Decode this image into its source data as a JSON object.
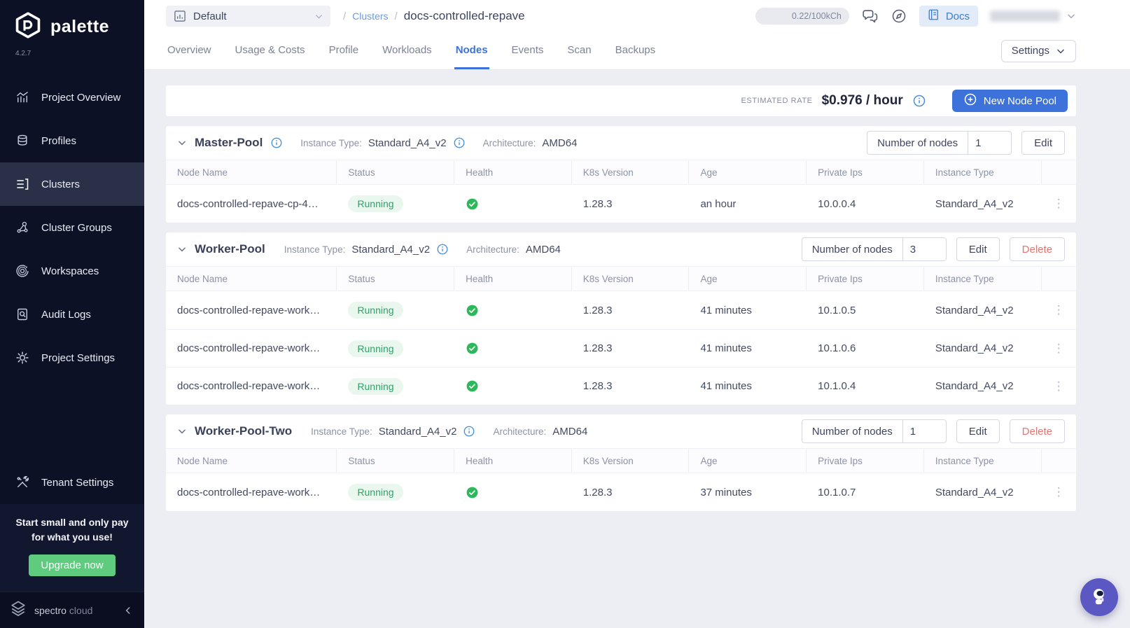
{
  "colors": {
    "accent_blue": "#3c72d9",
    "success_green": "#33a069",
    "delete_red": "#df7672",
    "upgrade_green": "#5ecb7e",
    "fab_purple": "#5b58c4",
    "sidebar_bg": "#0d1126"
  },
  "sidebar": {
    "logo_text": "palette",
    "version": "4.2.7",
    "items": [
      {
        "label": "Project Overview",
        "icon": "chart-icon",
        "active": false,
        "position": "top"
      },
      {
        "label": "Profiles",
        "icon": "layers-icon",
        "active": false,
        "position": "top"
      },
      {
        "label": "Clusters",
        "icon": "clusters-icon",
        "active": true,
        "position": "top"
      },
      {
        "label": "Cluster Groups",
        "icon": "cluster-groups-icon",
        "active": false,
        "position": "top"
      },
      {
        "label": "Workspaces",
        "icon": "workspaces-icon",
        "active": false,
        "position": "top"
      },
      {
        "label": "Audit Logs",
        "icon": "audit-icon",
        "active": false,
        "position": "top"
      },
      {
        "label": "Project Settings",
        "icon": "gear-icon",
        "active": false,
        "position": "top"
      },
      {
        "label": "Tenant Settings",
        "icon": "tools-icon",
        "active": false,
        "position": "bottom"
      }
    ],
    "upgrade": {
      "message": "Start small and only pay for what you use!",
      "button": "Upgrade now"
    },
    "brand_primary": "spectro",
    "brand_secondary": "cloud"
  },
  "header": {
    "project_selector": "Default",
    "breadcrumb": {
      "parent": "Clusters",
      "current": "docs-controlled-repave"
    },
    "usage_pill": "0.22/100kCh",
    "docs_label": "Docs"
  },
  "tabs": {
    "items": [
      "Overview",
      "Usage & Costs",
      "Profile",
      "Workloads",
      "Nodes",
      "Events",
      "Scan",
      "Backups"
    ],
    "active": "Nodes",
    "settings_label": "Settings"
  },
  "ratebar": {
    "label": "ESTIMATED RATE",
    "value": "$0.976 / hour",
    "new_pool_label": "New Node Pool"
  },
  "table_headers": [
    "Node Name",
    "Status",
    "Health",
    "K8s Version",
    "Age",
    "Private Ips",
    "Instance Type"
  ],
  "pools": [
    {
      "name": "Master-Pool",
      "name_info": true,
      "instance_type_label": "Instance Type:",
      "instance_type": "Standard_A4_v2",
      "architecture_label": "Architecture:",
      "architecture": "AMD64",
      "nodes_label": "Number of nodes",
      "nodes_value": "1",
      "actions": [
        "Edit"
      ],
      "rows": [
        {
          "node_name": "docs-controlled-repave-cp-4…",
          "status": "Running",
          "health": "healthy",
          "k8s_version": "1.28.3",
          "age": "an hour",
          "private_ip": "10.0.0.4",
          "instance_type": "Standard_A4_v2"
        }
      ]
    },
    {
      "name": "Worker-Pool",
      "name_info": false,
      "instance_type_label": "Instance Type:",
      "instance_type": "Standard_A4_v2",
      "architecture_label": "Architecture:",
      "architecture": "AMD64",
      "nodes_label": "Number of nodes",
      "nodes_value": "3",
      "actions": [
        "Edit",
        "Delete"
      ],
      "rows": [
        {
          "node_name": "docs-controlled-repave-work…",
          "status": "Running",
          "health": "healthy",
          "k8s_version": "1.28.3",
          "age": "41 minutes",
          "private_ip": "10.1.0.5",
          "instance_type": "Standard_A4_v2"
        },
        {
          "node_name": "docs-controlled-repave-work…",
          "status": "Running",
          "health": "healthy",
          "k8s_version": "1.28.3",
          "age": "41 minutes",
          "private_ip": "10.1.0.6",
          "instance_type": "Standard_A4_v2"
        },
        {
          "node_name": "docs-controlled-repave-work…",
          "status": "Running",
          "health": "healthy",
          "k8s_version": "1.28.3",
          "age": "41 minutes",
          "private_ip": "10.1.0.4",
          "instance_type": "Standard_A4_v2"
        }
      ]
    },
    {
      "name": "Worker-Pool-Two",
      "name_info": false,
      "instance_type_label": "Instance Type:",
      "instance_type": "Standard_A4_v2",
      "architecture_label": "Architecture:",
      "architecture": "AMD64",
      "nodes_label": "Number of nodes",
      "nodes_value": "1",
      "actions": [
        "Edit",
        "Delete"
      ],
      "rows": [
        {
          "node_name": "docs-controlled-repave-work…",
          "status": "Running",
          "health": "healthy",
          "k8s_version": "1.28.3",
          "age": "37 minutes",
          "private_ip": "10.1.0.7",
          "instance_type": "Standard_A4_v2"
        }
      ]
    }
  ]
}
